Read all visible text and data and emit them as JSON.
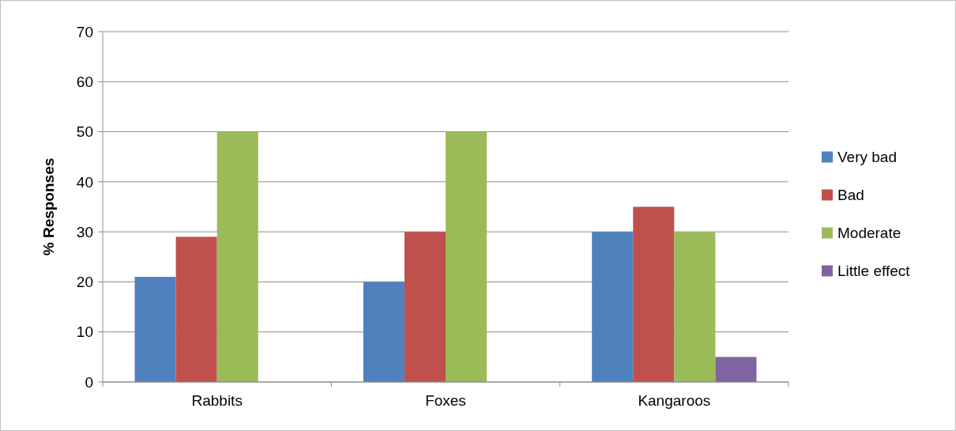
{
  "chart_data": {
    "type": "bar",
    "ylabel": "% Responses",
    "categories": [
      "Rabbits",
      "Foxes",
      "Kangaroos"
    ],
    "series": [
      {
        "name": "Very bad",
        "color": "#4f81bd",
        "values": [
          21,
          20,
          30
        ]
      },
      {
        "name": "Bad",
        "color": "#c0504d",
        "values": [
          29,
          30,
          35
        ]
      },
      {
        "name": "Moderate",
        "color": "#9bbb59",
        "values": [
          50,
          50,
          30
        ]
      },
      {
        "name": "Little effect",
        "color": "#8064a2",
        "values": [
          0,
          0,
          5
        ]
      }
    ],
    "ylim": [
      0,
      70
    ],
    "yticks": [
      0,
      10,
      20,
      30,
      40,
      50,
      60,
      70
    ],
    "grid": "y",
    "legend": "right"
  }
}
